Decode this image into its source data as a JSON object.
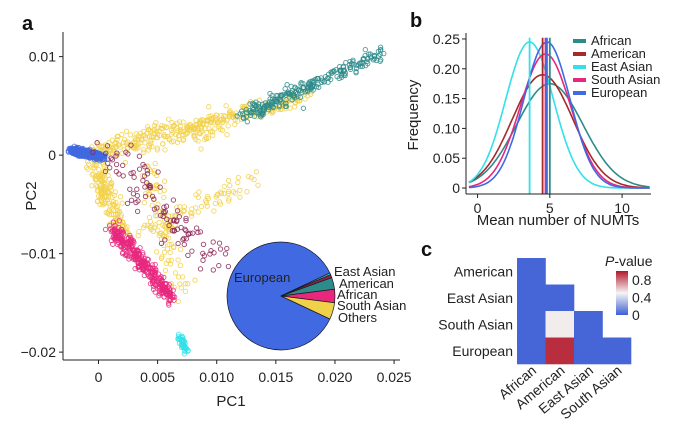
{
  "figure": {
    "panels": [
      "a",
      "b",
      "c"
    ]
  },
  "chart_data": [
    {
      "id": "a",
      "type": "scatter",
      "xlabel": "PC1",
      "ylabel": "PC2",
      "xlim": [
        -0.003,
        0.0255
      ],
      "ylim": [
        -0.0208,
        0.0125
      ],
      "xticks": [
        0,
        0.005,
        0.01,
        0.015,
        0.02,
        0.025
      ],
      "xtick_labels": [
        "0",
        "0.005",
        "0.010",
        "0.015",
        "0.020",
        "0.025"
      ],
      "yticks": [
        0.01,
        0,
        -0.01,
        -0.02
      ],
      "ytick_labels": [
        "0.01",
        "0",
        "−0.01",
        "−0.02"
      ],
      "groups": [
        {
          "name": "European",
          "color": "#4169E1",
          "centroid": [
            -0.001,
            0.0001
          ],
          "approx_count": 800
        },
        {
          "name": "African",
          "color": "#2E8B8B",
          "centroid": [
            0.019,
            0.0075
          ],
          "approx_count": 300
        },
        {
          "name": "East Asian",
          "color": "#33E0E8",
          "centroid": [
            0.0072,
            -0.0195
          ],
          "approx_count": 60
        },
        {
          "name": "South Asian",
          "color": "#E8287F",
          "centroid": [
            0.003,
            -0.011
          ],
          "approx_count": 350
        },
        {
          "name": "American",
          "color": "#8B2252",
          "centroid": [
            0.006,
            -0.004
          ],
          "approx_count": 120
        },
        {
          "name": "Others",
          "color": "#F2D14A",
          "centroid": [
            0.007,
            0.003
          ],
          "approx_count": 700
        }
      ],
      "inset_pie": {
        "type": "pie",
        "slices": [
          {
            "label": "European",
            "value": 0.86,
            "color": "#4169E1"
          },
          {
            "label": "East Asian",
            "value": 0.005,
            "color": "#33E0E8"
          },
          {
            "label": "American",
            "value": 0.01,
            "color": "#8B2252"
          },
          {
            "label": "African",
            "value": 0.035,
            "color": "#2E8B8B"
          },
          {
            "label": "South Asian",
            "value": 0.04,
            "color": "#E8287F"
          },
          {
            "label": "Others",
            "value": 0.05,
            "color": "#F2D14A"
          }
        ]
      }
    },
    {
      "id": "b",
      "type": "line",
      "xlabel": "Mean number of NUMTs",
      "ylabel": "Frequency",
      "xlim": [
        -0.8,
        12
      ],
      "ylim": [
        -0.01,
        0.26
      ],
      "xticks": [
        0,
        5,
        10
      ],
      "yticks": [
        0,
        0.05,
        0.1,
        0.15,
        0.2,
        0.25
      ],
      "ytick_labels": [
        "0",
        "0.05",
        "0.10",
        "0.15",
        "0.20",
        "0.25"
      ],
      "legend_position": "top-right",
      "series": [
        {
          "name": "African",
          "color": "#2E8B8B",
          "mean": 5.0,
          "sd": 2.3,
          "peak": 0.175
        },
        {
          "name": "American",
          "color": "#A52A2A",
          "mean": 4.5,
          "sd": 2.1,
          "peak": 0.19
        },
        {
          "name": "East Asian",
          "color": "#33E0E8",
          "mean": 3.6,
          "sd": 1.65,
          "peak": 0.245
        },
        {
          "name": "South Asian",
          "color": "#E8287F",
          "mean": 4.7,
          "sd": 1.75,
          "peak": 0.225
        },
        {
          "name": "European",
          "color": "#4169E1",
          "mean": 4.8,
          "sd": 1.6,
          "peak": 0.245
        }
      ],
      "vlines": [
        {
          "x": 3.6,
          "color": "#33E0E8"
        },
        {
          "x": 4.5,
          "color": "#A52A2A"
        },
        {
          "x": 4.7,
          "color": "#E8287F"
        },
        {
          "x": 4.8,
          "color": "#4169E1"
        },
        {
          "x": 5.0,
          "color": "#2E8B8B"
        }
      ]
    },
    {
      "id": "c",
      "type": "heatmap",
      "rows": [
        "American",
        "East Asian",
        "South Asian",
        "European"
      ],
      "cols": [
        "African",
        "American",
        "East Asian",
        "South Asian"
      ],
      "values": [
        [
          0.02,
          null,
          null,
          null
        ],
        [
          0.02,
          0.02,
          null,
          null
        ],
        [
          0.02,
          0.52,
          0.02,
          null
        ],
        [
          0.02,
          0.95,
          0.02,
          0.02
        ]
      ],
      "colorbar": {
        "title": "P-value",
        "title_italic_part": "P",
        "title_rest": "-value",
        "ticks": [
          "0.8",
          "0.4",
          "0"
        ],
        "tick_values": [
          0.8,
          0.4,
          0.0
        ],
        "range": [
          0,
          1
        ],
        "low_color": "#3F5FD6",
        "mid_color": "#F5F5F5",
        "high_color": "#B2182B"
      }
    }
  ]
}
